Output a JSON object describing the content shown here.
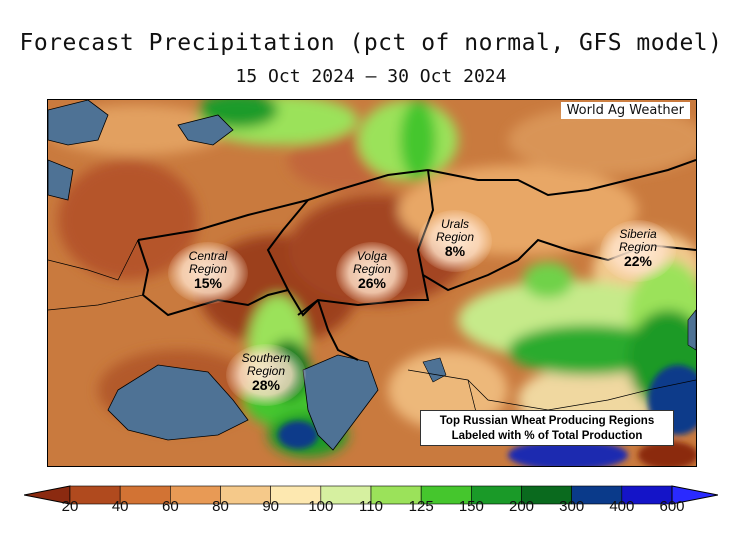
{
  "title": "Forecast Precipitation (pct of normal, GFS model)",
  "date_range": "15 Oct 2024 – 30 Oct 2024",
  "credit": "World Ag Weather",
  "regions": [
    {
      "name_line1": "Central",
      "name_line2": "Region",
      "pct": "15%"
    },
    {
      "name_line1": "Volga",
      "name_line2": "Region",
      "pct": "26%"
    },
    {
      "name_line1": "Urals",
      "name_line2": "Region",
      "pct": "8%"
    },
    {
      "name_line1": "Siberia",
      "name_line2": "Region",
      "pct": "22%"
    },
    {
      "name_line1": "Southern",
      "name_line2": "Region",
      "pct": "28%"
    }
  ],
  "legend_box": {
    "line1": "Top Russian Wheat Producing Regions",
    "line2": "Labeled with % of Total Production"
  },
  "colorbar": {
    "ticks": [
      "20",
      "40",
      "60",
      "80",
      "90",
      "100",
      "110",
      "125",
      "150",
      "200",
      "300",
      "400",
      "600"
    ],
    "colors": [
      "#8b2a10",
      "#b04a1e",
      "#d27334",
      "#e89a55",
      "#f5c98a",
      "#fde8b0",
      "#d6f0a0",
      "#9be25a",
      "#45c62d",
      "#1a9a28",
      "#0a6a1e",
      "#0a3a8a",
      "#1414c8",
      "#2a2aff"
    ]
  }
}
